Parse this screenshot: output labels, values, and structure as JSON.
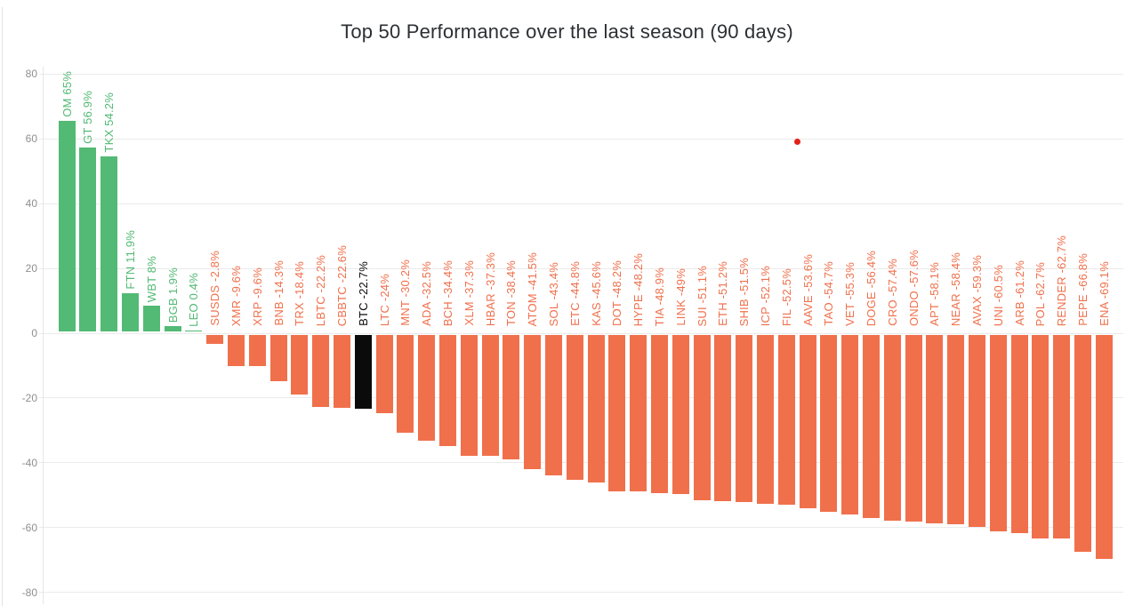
{
  "title": "Top 50 Performance over the last season (90 days)",
  "chart_data": {
    "type": "bar",
    "title": "Top 50 Performance over the last season (90 days)",
    "xlabel": "",
    "ylabel": "",
    "ylim": [
      -80,
      80
    ],
    "yticks": [
      80,
      60,
      40,
      20,
      0,
      -20,
      -40,
      -60,
      -80
    ],
    "grid": true,
    "legend_position": "none",
    "bar_label_rotation": 90,
    "categories": [
      "OM",
      "GT",
      "TKX",
      "FTN",
      "WBT",
      "BGB",
      "LEO",
      "SUSDS",
      "XMR",
      "XRP",
      "BNB",
      "TRX",
      "LBTC",
      "CBBTC",
      "BTC",
      "LTC",
      "MNT",
      "ADA",
      "BCH",
      "XLM",
      "HBAR",
      "TON",
      "ATOM",
      "SOL",
      "ETC",
      "KAS",
      "DOT",
      "HYPE",
      "TIA",
      "LINK",
      "SUI",
      "ETH",
      "SHIB",
      "ICP",
      "FIL",
      "AAVE",
      "TAO",
      "VET",
      "DOGE",
      "CRO",
      "ONDO",
      "APT",
      "NEAR",
      "AVAX",
      "UNI",
      "ARB",
      "POL",
      "RENDER",
      "PEPE",
      "ENA"
    ],
    "values": [
      65,
      56.9,
      54.2,
      11.9,
      8,
      1.9,
      0.4,
      -2.8,
      -9.6,
      -9.6,
      -14.3,
      -18.4,
      -22.2,
      -22.6,
      -22.7,
      -24,
      -30.2,
      -32.5,
      -34.4,
      -37.3,
      -37.3,
      -38.4,
      -41.5,
      -43.4,
      -44.8,
      -45.6,
      -48.2,
      -48.2,
      -48.9,
      -49,
      -51.1,
      -51.2,
      -51.5,
      -52.1,
      -52.5,
      -53.6,
      -54.7,
      -55.3,
      -56.4,
      -57.4,
      -57.6,
      -58.1,
      -58.4,
      -59.3,
      -60.5,
      -61.2,
      -62.7,
      -62.7,
      -66.8,
      -69.1
    ],
    "bar_labels": [
      "OM 65%",
      "GT 56.9%",
      "TKX 54.2%",
      "FTN 11.9%",
      "WBT 8%",
      "BGB 1.9%",
      "LEO 0.4%",
      "SUSDS -2.8%",
      "XMR -9.6%",
      "XRP -9.6%",
      "BNB -14.3%",
      "TRX -18.4%",
      "LBTC -22.2%",
      "CBBTC -22.6%",
      "BTC -22.7%",
      "LTC -24%",
      "MNT -30.2%",
      "ADA -32.5%",
      "BCH -34.4%",
      "XLM -37.3%",
      "HBAR -37.3%",
      "TON -38.4%",
      "ATOM -41.5%",
      "SOL -43.4%",
      "ETC -44.8%",
      "KAS -45.6%",
      "DOT -48.2%",
      "HYPE -48.2%",
      "TIA -48.9%",
      "LINK -49%",
      "SUI -51.1%",
      "ETH -51.2%",
      "SHIB -51.5%",
      "ICP -52.1%",
      "FIL -52.5%",
      "AAVE -53.6%",
      "TAO -54.7%",
      "VET -55.3%",
      "DOGE -56.4%",
      "CRO -57.4%",
      "ONDO -57.6%",
      "APT -58.1%",
      "NEAR -58.4%",
      "AVAX -59.3%",
      "UNI -60.5%",
      "ARB -61.2%",
      "POL -62.7%",
      "RENDER -62.7%",
      "PEPE -66.8%",
      "ENA -69.1%"
    ],
    "colors": {
      "positive": "#52ba74",
      "negative": "#f0704c",
      "grid": "#ebebeb",
      "tick_text": "#8f8f8f",
      "title_text": "#2c3034"
    },
    "highlight": {
      "category": "BTC",
      "color": "#0b0b0b"
    },
    "marker_dot": {
      "between": [
        "FIL",
        "AAVE"
      ],
      "value": 59,
      "color": "#e32119"
    }
  }
}
